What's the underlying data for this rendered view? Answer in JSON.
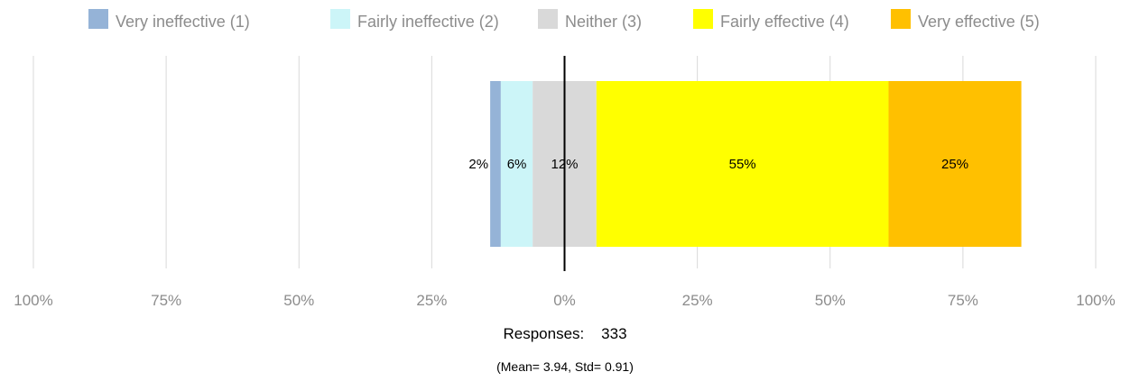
{
  "chart_data": {
    "type": "bar",
    "orientation": "horizontal",
    "stacked": "diverging",
    "categories": [
      ""
    ],
    "series": [
      {
        "name": "Very ineffective (1)",
        "values": [
          2
        ],
        "label": "2%",
        "color": "#95b3d7"
      },
      {
        "name": "Fairly ineffective (2)",
        "values": [
          6
        ],
        "label": "6%",
        "color": "#ccf5f8"
      },
      {
        "name": "Neither (3)",
        "values": [
          12
        ],
        "label": "12%",
        "color": "#d9d9d9"
      },
      {
        "name": "Fairly effective (4)",
        "values": [
          55
        ],
        "label": "55%",
        "color": "#ffff00"
      },
      {
        "name": "Very effective (5)",
        "values": [
          25
        ],
        "label": "25%",
        "color": "#ffc000"
      }
    ],
    "x_ticks": [
      "100%",
      "75%",
      "50%",
      "25%",
      "0%",
      "25%",
      "50%",
      "75%",
      "100%"
    ],
    "xlim": [
      -100,
      100
    ],
    "grid": true,
    "legend_position": "top"
  },
  "footer": {
    "responses_label": "Responses:",
    "responses_value": "333",
    "stats": "(Mean= 3.94, Std= 0.91)"
  }
}
